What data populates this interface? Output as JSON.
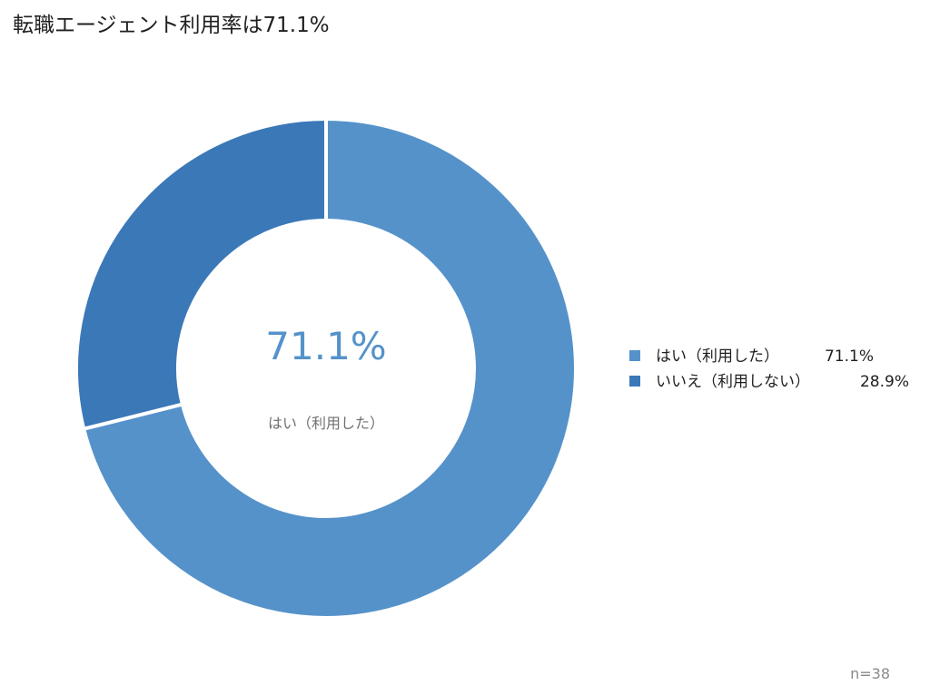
{
  "chart_data": {
    "type": "pie",
    "title": "転職エージェント利用率は71.1%",
    "categories": [
      "はい（利用した）",
      "いいえ（利用しない）"
    ],
    "values": [
      71.1,
      28.9
    ],
    "value_labels": [
      "71.1%",
      "28.9%"
    ],
    "colors": [
      "#5592ca",
      "#3b78b8"
    ],
    "center_value": "71.1%",
    "center_label": "はい（利用した）",
    "legend_position": "right",
    "sample_size": "n=38"
  },
  "colors": {
    "center_value_text": "#5592ca",
    "center_label_text": "#707070"
  }
}
